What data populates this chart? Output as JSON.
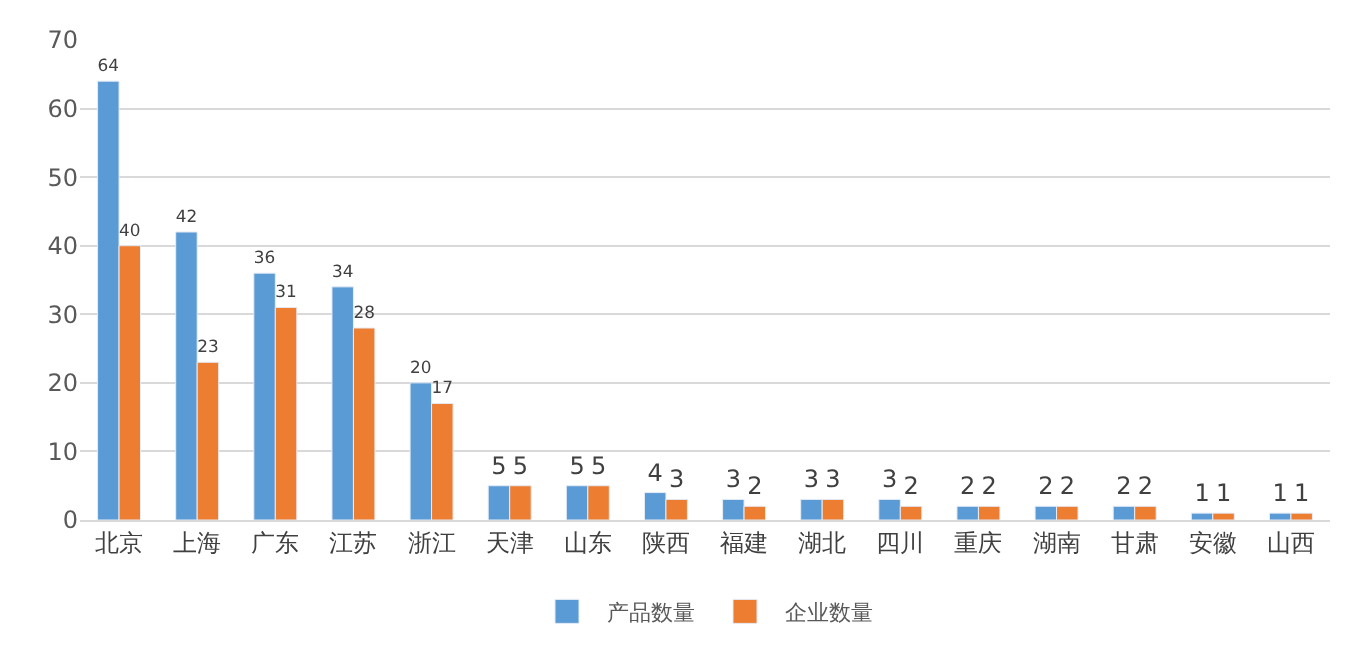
{
  "chart_data": {
    "type": "bar",
    "categories": [
      "北京",
      "上海",
      "广东",
      "江苏",
      "浙江",
      "天津",
      "山东",
      "陕西",
      "福建",
      "湖北",
      "四川",
      "重庆",
      "湖南",
      "甘肃",
      "安徽",
      "山西"
    ],
    "series": [
      {
        "name": "产品数量",
        "color": "#5b9bd5",
        "values": [
          64,
          42,
          36,
          34,
          20,
          5,
          5,
          4,
          3,
          3,
          3,
          2,
          2,
          2,
          1,
          1
        ]
      },
      {
        "name": "企业数量",
        "color": "#ed7d31",
        "values": [
          40,
          23,
          31,
          28,
          17,
          5,
          5,
          3,
          2,
          3,
          2,
          2,
          2,
          2,
          1,
          1
        ]
      }
    ],
    "ylim": [
      0,
      70
    ],
    "yticks": [
      0,
      10,
      20,
      30,
      40,
      50,
      60,
      70
    ],
    "grid": "y",
    "legend": "bottom",
    "data_labels": true
  }
}
